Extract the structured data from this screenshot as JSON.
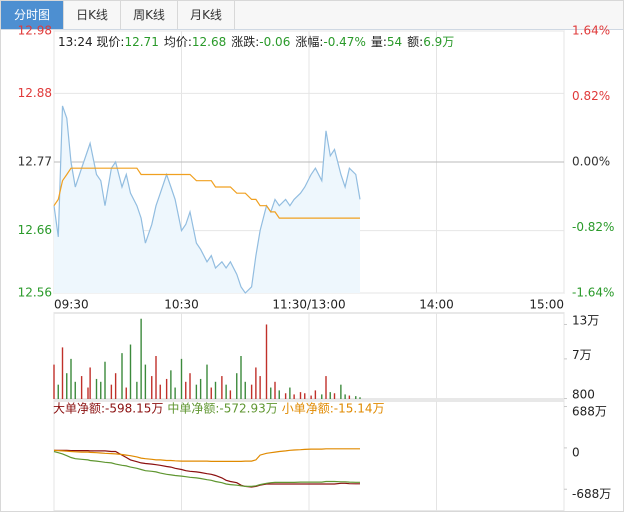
{
  "tabs": [
    "分时图",
    "日K线",
    "周K线",
    "月K线"
  ],
  "info": {
    "time": "13:24",
    "items": [
      {
        "label": "现价:",
        "value": "12.71"
      },
      {
        "label": "均价:",
        "value": "12.68"
      },
      {
        "label": "涨跌:",
        "value": "-0.06"
      },
      {
        "label": "涨幅:",
        "value": "-0.47%"
      },
      {
        "label": "量:",
        "value": "54"
      },
      {
        "label": "额:",
        "value": "6.9万"
      }
    ]
  },
  "chart_data": [
    {
      "type": "line",
      "x": [
        0,
        2,
        4,
        6,
        8,
        10,
        13,
        16,
        17,
        20,
        22,
        24,
        27,
        29,
        32,
        34,
        36,
        39,
        41,
        43,
        46,
        48,
        50,
        53,
        55,
        57,
        60,
        62,
        64,
        67,
        69,
        72,
        74,
        76,
        79,
        81,
        83,
        86,
        88,
        90,
        93,
        95,
        97,
        100,
        102,
        104,
        106,
        109,
        111,
        113,
        116,
        118,
        121,
        123,
        126,
        128,
        130,
        132,
        135,
        137,
        139,
        142,
        144
      ],
      "xlim": [
        0,
        240
      ],
      "xticks": [
        {
          "value": 0,
          "label": "09:30"
        },
        {
          "value": 60,
          "label": "10:30"
        },
        {
          "value": 120,
          "label": "11:30/13:00"
        },
        {
          "value": 180,
          "label": "14:00"
        },
        {
          "value": 240,
          "label": "15:00"
        }
      ],
      "ylim": [
        12.56,
        12.98
      ],
      "yticks": [
        12.98,
        12.88,
        12.77,
        12.66,
        12.56
      ],
      "y2lim": [
        -1.64,
        1.64
      ],
      "y2ticks": [
        {
          "value": 1.64,
          "label": "1.64%"
        },
        {
          "value": 0.82,
          "label": "0.82%"
        },
        {
          "value": 0,
          "label": "0.00%"
        },
        {
          "value": -0.82,
          "label": "-0.82%"
        },
        {
          "value": -1.64,
          "label": "-1.64%"
        }
      ],
      "up_color": "#e03a3a",
      "down_color": "#2a9a2a",
      "series": [
        {
          "color": "#92bde0",
          "fill": "#eef7fd",
          "values": [
            12.7,
            12.65,
            12.86,
            12.84,
            12.77,
            12.73,
            12.76,
            12.79,
            12.8,
            12.75,
            12.74,
            12.7,
            12.76,
            12.77,
            12.73,
            12.75,
            12.72,
            12.7,
            12.68,
            12.64,
            12.67,
            12.7,
            12.72,
            12.75,
            12.73,
            12.71,
            12.66,
            12.67,
            12.69,
            12.64,
            12.63,
            12.61,
            12.62,
            12.6,
            12.61,
            12.6,
            12.61,
            12.59,
            12.57,
            12.56,
            12.57,
            12.62,
            12.66,
            12.7,
            12.69,
            12.71,
            12.7,
            12.71,
            12.7,
            12.71,
            12.72,
            12.73,
            12.75,
            12.76,
            12.74,
            12.82,
            12.78,
            12.79,
            12.75,
            12.73,
            12.76,
            12.75,
            12.71
          ]
        },
        {
          "color": "#f0a020",
          "values": [
            12.7,
            12.71,
            12.74,
            12.75,
            12.76,
            12.76,
            12.76,
            12.76,
            12.76,
            12.76,
            12.76,
            12.76,
            12.76,
            12.76,
            12.76,
            12.76,
            12.76,
            12.76,
            12.75,
            12.75,
            12.75,
            12.75,
            12.75,
            12.75,
            12.75,
            12.75,
            12.75,
            12.75,
            12.75,
            12.74,
            12.74,
            12.74,
            12.74,
            12.73,
            12.73,
            12.73,
            12.73,
            12.72,
            12.72,
            12.72,
            12.71,
            12.71,
            12.7,
            12.7,
            12.69,
            12.69,
            12.68,
            12.68,
            12.68,
            12.68,
            12.68,
            12.68,
            12.68,
            12.68,
            12.68,
            12.68,
            12.68,
            12.68,
            12.68,
            12.68,
            12.68,
            12.68,
            12.68
          ]
        }
      ]
    },
    {
      "type": "bar",
      "ylim": [
        0,
        150000
      ],
      "yticks": [
        {
          "value": 130000,
          "label": "13万"
        },
        {
          "value": 70000,
          "label": "7万"
        },
        800
      ],
      "up_color": "#c0302a",
      "down_color": "#3c8a3c",
      "values": [
        60000,
        25000,
        90000,
        45000,
        70000,
        30000,
        40000,
        20000,
        55000,
        35000,
        30000,
        65000,
        25000,
        45000,
        80000,
        20000,
        95000,
        30000,
        140000,
        60000,
        40000,
        75000,
        25000,
        35000,
        50000,
        20000,
        70000,
        30000,
        45000,
        25000,
        35000,
        60000,
        20000,
        30000,
        40000,
        25000,
        15000,
        45000,
        75000,
        30000,
        25000,
        55000,
        40000,
        130000,
        20000,
        30000,
        15000,
        10000,
        20000,
        8000,
        12000,
        10000,
        6000,
        15000,
        8000,
        40000,
        12000,
        10000,
        25000,
        8000,
        6000,
        5000,
        3000
      ]
    },
    {
      "type": "line",
      "ylim": [
        -1050,
        780
      ],
      "yticks": [
        {
          "value": 688,
          "label": "688万"
        },
        0,
        {
          "value": -688,
          "label": "-688万"
        }
      ],
      "series": [
        {
          "name": "大单净额:-598.15万",
          "color": "#8b1010",
          "values": [
            -40,
            -40,
            -40,
            -40,
            -45,
            -45,
            -45,
            -45,
            -50,
            -50,
            -50,
            -50,
            -60,
            -60,
            -120,
            -160,
            -200,
            -230,
            -250,
            -260,
            -270,
            -280,
            -290,
            -310,
            -320,
            -340,
            -360,
            -380,
            -390,
            -400,
            -410,
            -430,
            -440,
            -460,
            -500,
            -540,
            -560,
            -580,
            -620,
            -640,
            -650,
            -640,
            -620,
            -600,
            -600,
            -600,
            -600,
            -600,
            -600,
            -600,
            -600,
            -600,
            -600,
            -600,
            -600,
            -600,
            -600,
            -600,
            -590,
            -590,
            -595,
            -598,
            -598.15
          ]
        },
        {
          "name": "中单净额:-572.93万",
          "color": "#5f9630",
          "values": [
            -60,
            -80,
            -100,
            -130,
            -160,
            -180,
            -190,
            -200,
            -210,
            -220,
            -230,
            -240,
            -250,
            -270,
            -290,
            -300,
            -320,
            -340,
            -360,
            -380,
            -390,
            -400,
            -420,
            -440,
            -450,
            -460,
            -470,
            -480,
            -490,
            -500,
            -510,
            -530,
            -540,
            -560,
            -580,
            -600,
            -610,
            -620,
            -630,
            -640,
            -640,
            -630,
            -610,
            -590,
            -580,
            -575,
            -575,
            -575,
            -575,
            -575,
            -570,
            -570,
            -570,
            -570,
            -570,
            -560,
            -560,
            -560,
            -565,
            -565,
            -570,
            -572,
            -572.93
          ]
        },
        {
          "name": "小单净额:-15.14万",
          "color": "#e08a00",
          "values": [
            -40,
            -45,
            -50,
            -55,
            -60,
            -65,
            -70,
            -70,
            -75,
            -80,
            -85,
            -90,
            -95,
            -100,
            -110,
            -120,
            -130,
            -150,
            -170,
            -180,
            -190,
            -200,
            -200,
            -210,
            -210,
            -215,
            -220,
            -220,
            -220,
            -220,
            -220,
            -220,
            -225,
            -225,
            -225,
            -225,
            -225,
            -225,
            -225,
            -220,
            -220,
            -200,
            -120,
            -90,
            -80,
            -70,
            -60,
            -50,
            -40,
            -35,
            -30,
            -25,
            -20,
            -20,
            -20,
            -15,
            -15,
            -15,
            -15,
            -15,
            -15,
            -15,
            -15.14
          ]
        }
      ]
    }
  ]
}
